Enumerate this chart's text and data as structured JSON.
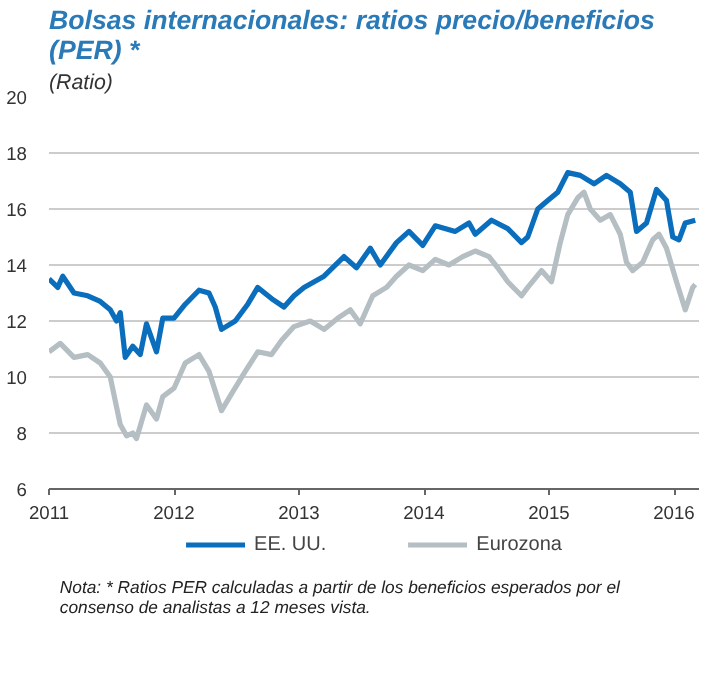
{
  "chart_data": {
    "type": "line",
    "title": "Bolsas internacionales: ratios precio/beneficios (PER) *",
    "subtitle": "(Ratio)",
    "annotations": [
      "Nota: * Ratios PER calculadas a partir de los beneficios esperados por el consenso de analistas a 12 meses vista."
    ],
    "xlim": [
      2011,
      2016.2
    ],
    "xticks": [
      2011,
      2012,
      2013,
      2014,
      2015,
      2016
    ],
    "ylim": [
      6,
      20
    ],
    "yticks": [
      6,
      8,
      10,
      12,
      14,
      16,
      18,
      20
    ],
    "grid": "y",
    "legend": "bottom",
    "line_style": "solid",
    "marker": "none",
    "series": [
      {
        "name": "EE. UU.",
        "color": "#0a6ebd",
        "x": [
          2011.0,
          2011.07,
          2011.11,
          2011.2,
          2011.31,
          2011.41,
          2011.49,
          2011.54,
          2011.57,
          2011.61,
          2011.67,
          2011.73,
          2011.78,
          2011.86,
          2011.91,
          2012.0,
          2012.09,
          2012.2,
          2012.28,
          2012.33,
          2012.38,
          2012.49,
          2012.59,
          2012.67,
          2012.78,
          2012.88,
          2012.96,
          2013.04,
          2013.2,
          2013.36,
          2013.46,
          2013.57,
          2013.65,
          2013.78,
          2013.88,
          2013.99,
          2014.09,
          2014.25,
          2014.36,
          2014.41,
          2014.54,
          2014.67,
          2014.78,
          2014.83,
          2014.91,
          2014.99,
          2015.07,
          2015.15,
          2015.25,
          2015.36,
          2015.46,
          2015.57,
          2015.65,
          2015.7,
          2015.78,
          2015.86,
          2015.94,
          2015.99,
          2016.04,
          2016.09,
          2016.17
        ],
        "values": [
          13.5,
          13.2,
          13.6,
          13.0,
          12.9,
          12.7,
          12.4,
          12.0,
          12.3,
          10.7,
          11.1,
          10.8,
          11.9,
          10.9,
          12.1,
          12.1,
          12.6,
          13.1,
          13.0,
          12.5,
          11.7,
          12.0,
          12.6,
          13.2,
          12.8,
          12.5,
          12.9,
          13.2,
          13.6,
          14.3,
          13.9,
          14.6,
          14.0,
          14.8,
          15.2,
          14.7,
          15.4,
          15.2,
          15.5,
          15.1,
          15.6,
          15.3,
          14.8,
          15.0,
          16.0,
          16.3,
          16.6,
          17.3,
          17.2,
          16.9,
          17.2,
          16.9,
          16.6,
          15.2,
          15.5,
          16.7,
          16.3,
          15.0,
          14.9,
          15.5,
          15.6
        ]
      },
      {
        "name": "Eurozona",
        "color": "#b4bec3",
        "x": [
          2011.0,
          2011.09,
          2011.2,
          2011.31,
          2011.41,
          2011.49,
          2011.57,
          2011.62,
          2011.67,
          2011.7,
          2011.78,
          2011.86,
          2011.91,
          2012.0,
          2012.09,
          2012.2,
          2012.28,
          2012.38,
          2012.46,
          2012.57,
          2012.67,
          2012.78,
          2012.86,
          2012.96,
          2013.09,
          2013.2,
          2013.31,
          2013.41,
          2013.49,
          2013.59,
          2013.7,
          2013.78,
          2013.88,
          2013.99,
          2014.09,
          2014.2,
          2014.31,
          2014.41,
          2014.52,
          2014.59,
          2014.67,
          2014.78,
          2014.83,
          2014.94,
          2015.02,
          2015.09,
          2015.15,
          2015.23,
          2015.28,
          2015.33,
          2015.41,
          2015.49,
          2015.57,
          2015.62,
          2015.67,
          2015.75,
          2015.83,
          2015.88,
          2015.94,
          2016.02,
          2016.09,
          2016.15,
          2016.17
        ],
        "values": [
          10.9,
          11.2,
          10.7,
          10.8,
          10.5,
          10.0,
          8.3,
          7.9,
          8.0,
          7.8,
          9.0,
          8.5,
          9.3,
          9.6,
          10.5,
          10.8,
          10.2,
          8.8,
          9.4,
          10.2,
          10.9,
          10.8,
          11.3,
          11.8,
          12.0,
          11.7,
          12.1,
          12.4,
          11.9,
          12.9,
          13.2,
          13.6,
          14.0,
          13.8,
          14.2,
          14.0,
          14.3,
          14.5,
          14.3,
          13.9,
          13.4,
          12.9,
          13.2,
          13.8,
          13.4,
          14.8,
          15.8,
          16.4,
          16.6,
          16.0,
          15.6,
          15.8,
          15.1,
          14.1,
          13.8,
          14.1,
          14.9,
          15.1,
          14.6,
          13.4,
          12.4,
          13.2,
          13.3
        ]
      }
    ]
  }
}
